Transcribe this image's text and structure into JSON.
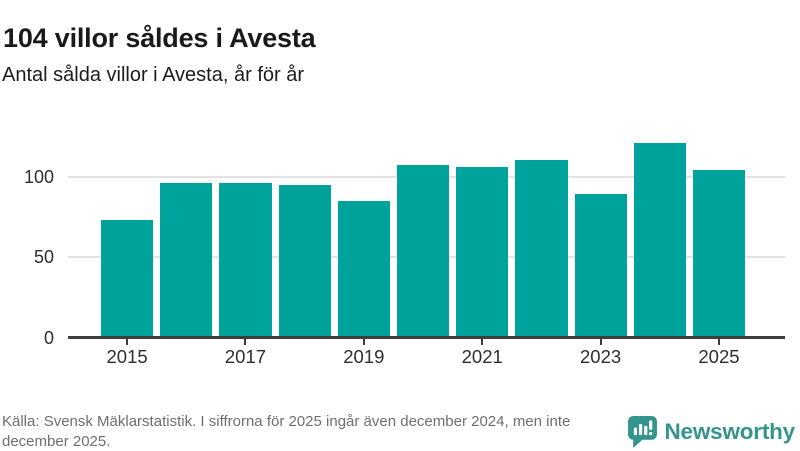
{
  "header": {
    "title": "104 villor såldes i Avesta",
    "subtitle": "Antal sålda villor i Avesta, år för år"
  },
  "chart_data": {
    "type": "bar",
    "title": "104 villor såldes i Avesta",
    "subtitle": "Antal sålda villor i Avesta, år för år",
    "categories": [
      "2015",
      "2016",
      "2017",
      "2018",
      "2019",
      "2020",
      "2021",
      "2022",
      "2023",
      "2024",
      "2025"
    ],
    "values": [
      73,
      96,
      96,
      95,
      85,
      107,
      106,
      110,
      89,
      121,
      104
    ],
    "x_tick_labels": [
      "2015",
      "2017",
      "2019",
      "2021",
      "2023",
      "2025"
    ],
    "y_ticks": [
      0,
      50,
      100
    ],
    "ylim": [
      0,
      122
    ],
    "grid": "horizontal",
    "legend": "none",
    "bar_color": "#00a39b"
  },
  "footer": {
    "source_text": "Källa: Svensk Mäklarstatistik. I siffrorna för 2025 ingår även december 2024, men inte december 2025.",
    "brand_name": "Newsworthy"
  },
  "colors": {
    "bar": "#00a39b",
    "axis_line": "#3d3d3d",
    "gridline": "#e3e3e3",
    "title_text": "#1a1a1a",
    "axis_label": "#2e2e2e",
    "footer_text": "#6f6f6f",
    "brand_teal": "#35948b"
  }
}
